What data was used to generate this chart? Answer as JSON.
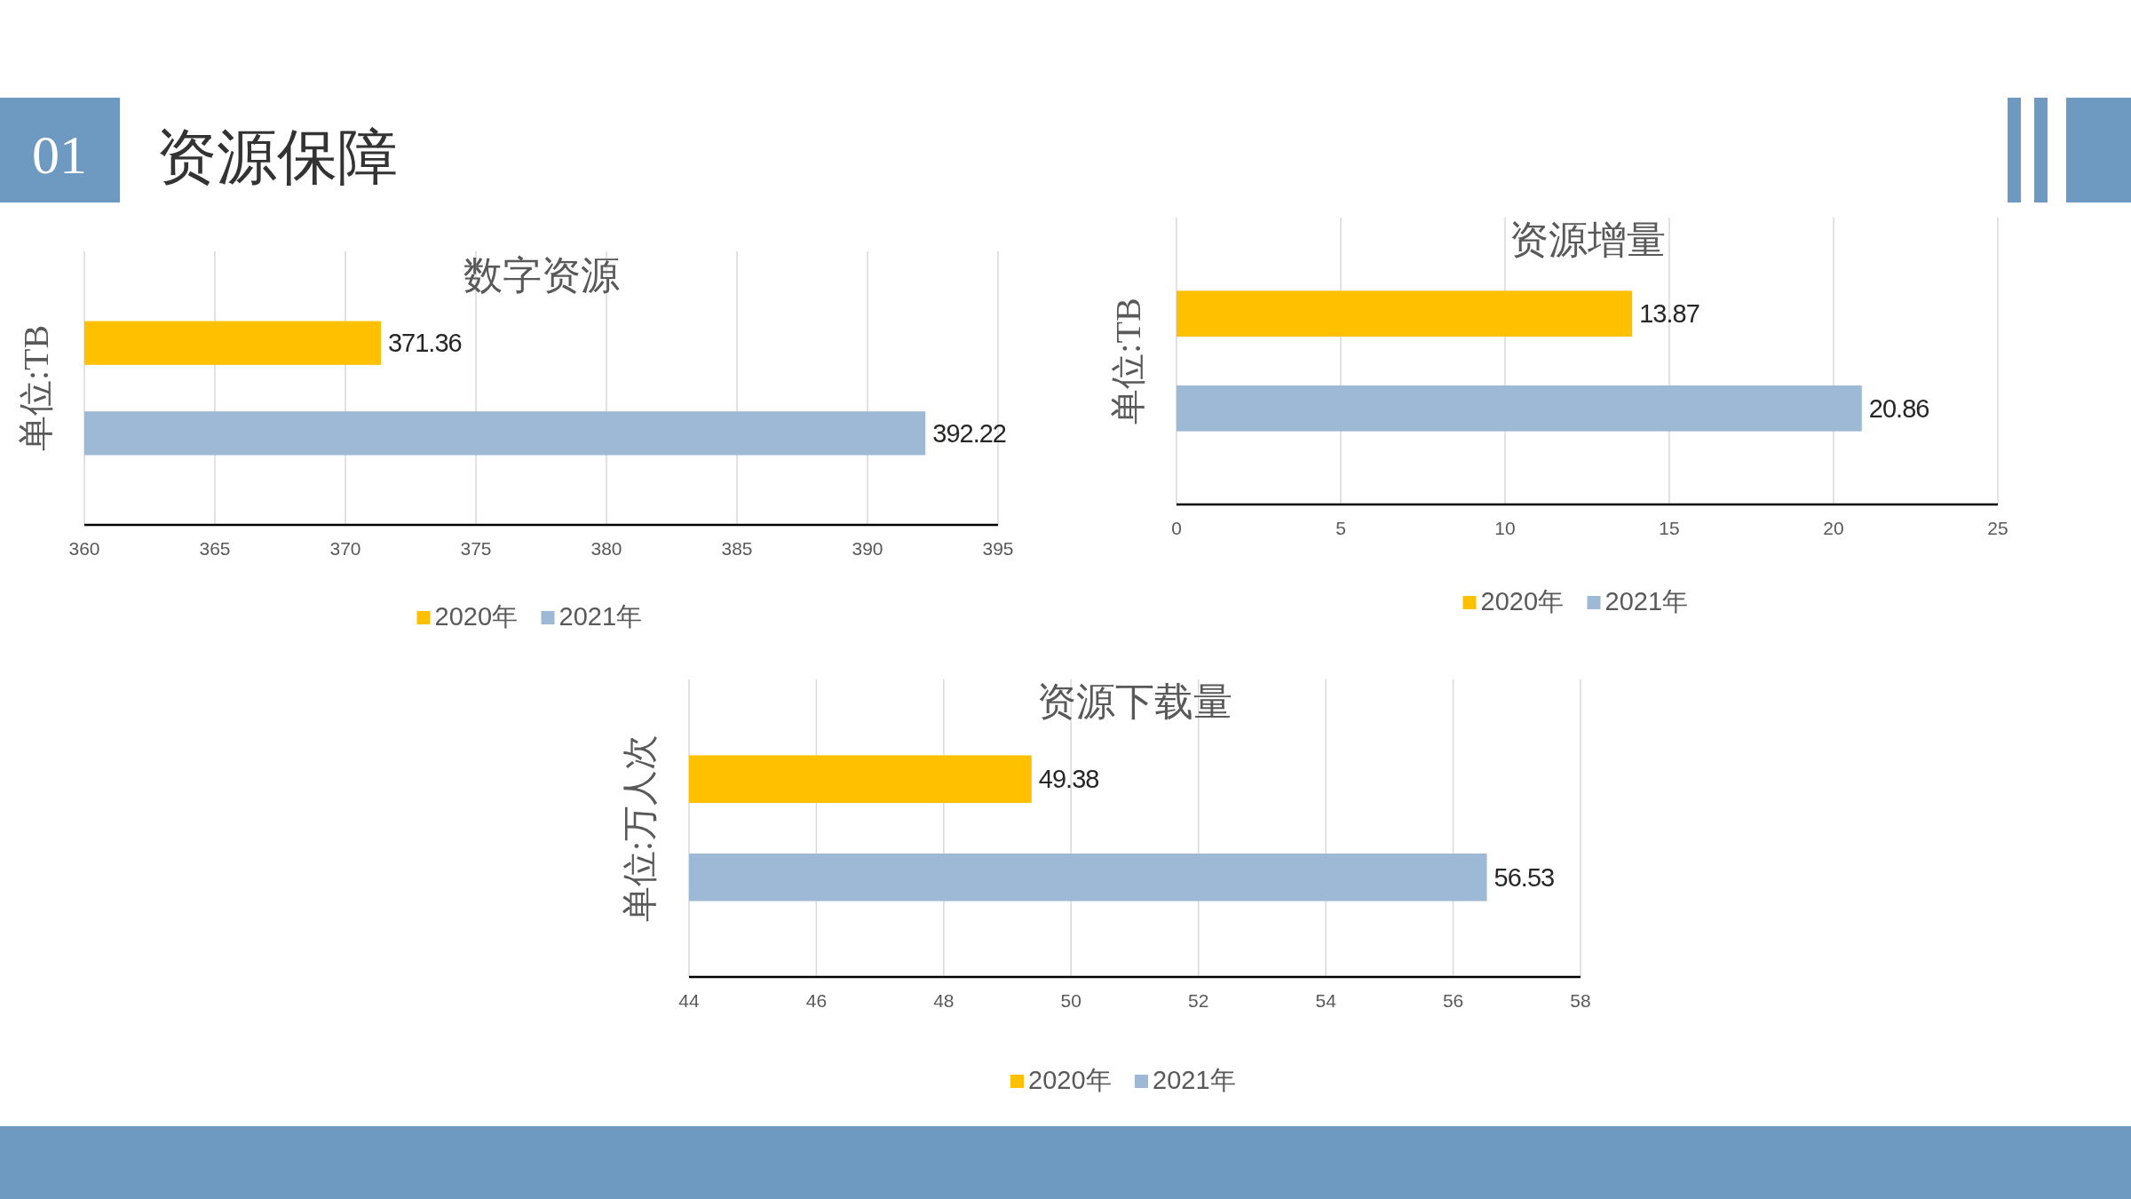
{
  "chart_data": [
    {
      "type": "bar",
      "orientation": "horizontal",
      "title": "数字资源",
      "ylabel": "单位:TB",
      "annotations": [
        "01",
        "资源保障"
      ],
      "categories": [
        null
      ],
      "series": [
        {
          "name": "2020年",
          "color": "#ffc000",
          "values": [
            371.36
          ]
        },
        {
          "name": "2021年",
          "color": "#9db9d5",
          "values": [
            392.22
          ]
        }
      ],
      "xlim": [
        360,
        395
      ],
      "xticks": [
        360,
        365,
        370,
        375,
        380,
        385,
        390,
        395
      ],
      "grid": "x",
      "legend": "bottom",
      "data_labels": true
    },
    {
      "type": "bar",
      "orientation": "horizontal",
      "title": "资源增量",
      "ylabel": "单位:TB",
      "categories": [
        null
      ],
      "series": [
        {
          "name": "2020年",
          "color": "#ffc000",
          "values": [
            13.87
          ]
        },
        {
          "name": "2021年",
          "color": "#9db9d5",
          "values": [
            20.86
          ]
        }
      ],
      "xlim": [
        0,
        25
      ],
      "xticks": [
        0,
        5,
        10,
        15,
        20,
        25
      ],
      "grid": "x",
      "legend": "bottom",
      "data_labels": true
    },
    {
      "type": "bar",
      "orientation": "horizontal",
      "title": "资源下载量",
      "ylabel": "单位:万人次",
      "categories": [
        null
      ],
      "series": [
        {
          "name": "2020年",
          "color": "#ffc000",
          "values": [
            49.38
          ]
        },
        {
          "name": "2021年",
          "color": "#9db9d5",
          "values": [
            56.53
          ]
        }
      ],
      "xlim": [
        44,
        58
      ],
      "xticks": [
        44,
        46,
        48,
        50,
        52,
        54,
        56,
        58
      ],
      "grid": "x",
      "legend": "bottom",
      "data_labels": true
    }
  ]
}
